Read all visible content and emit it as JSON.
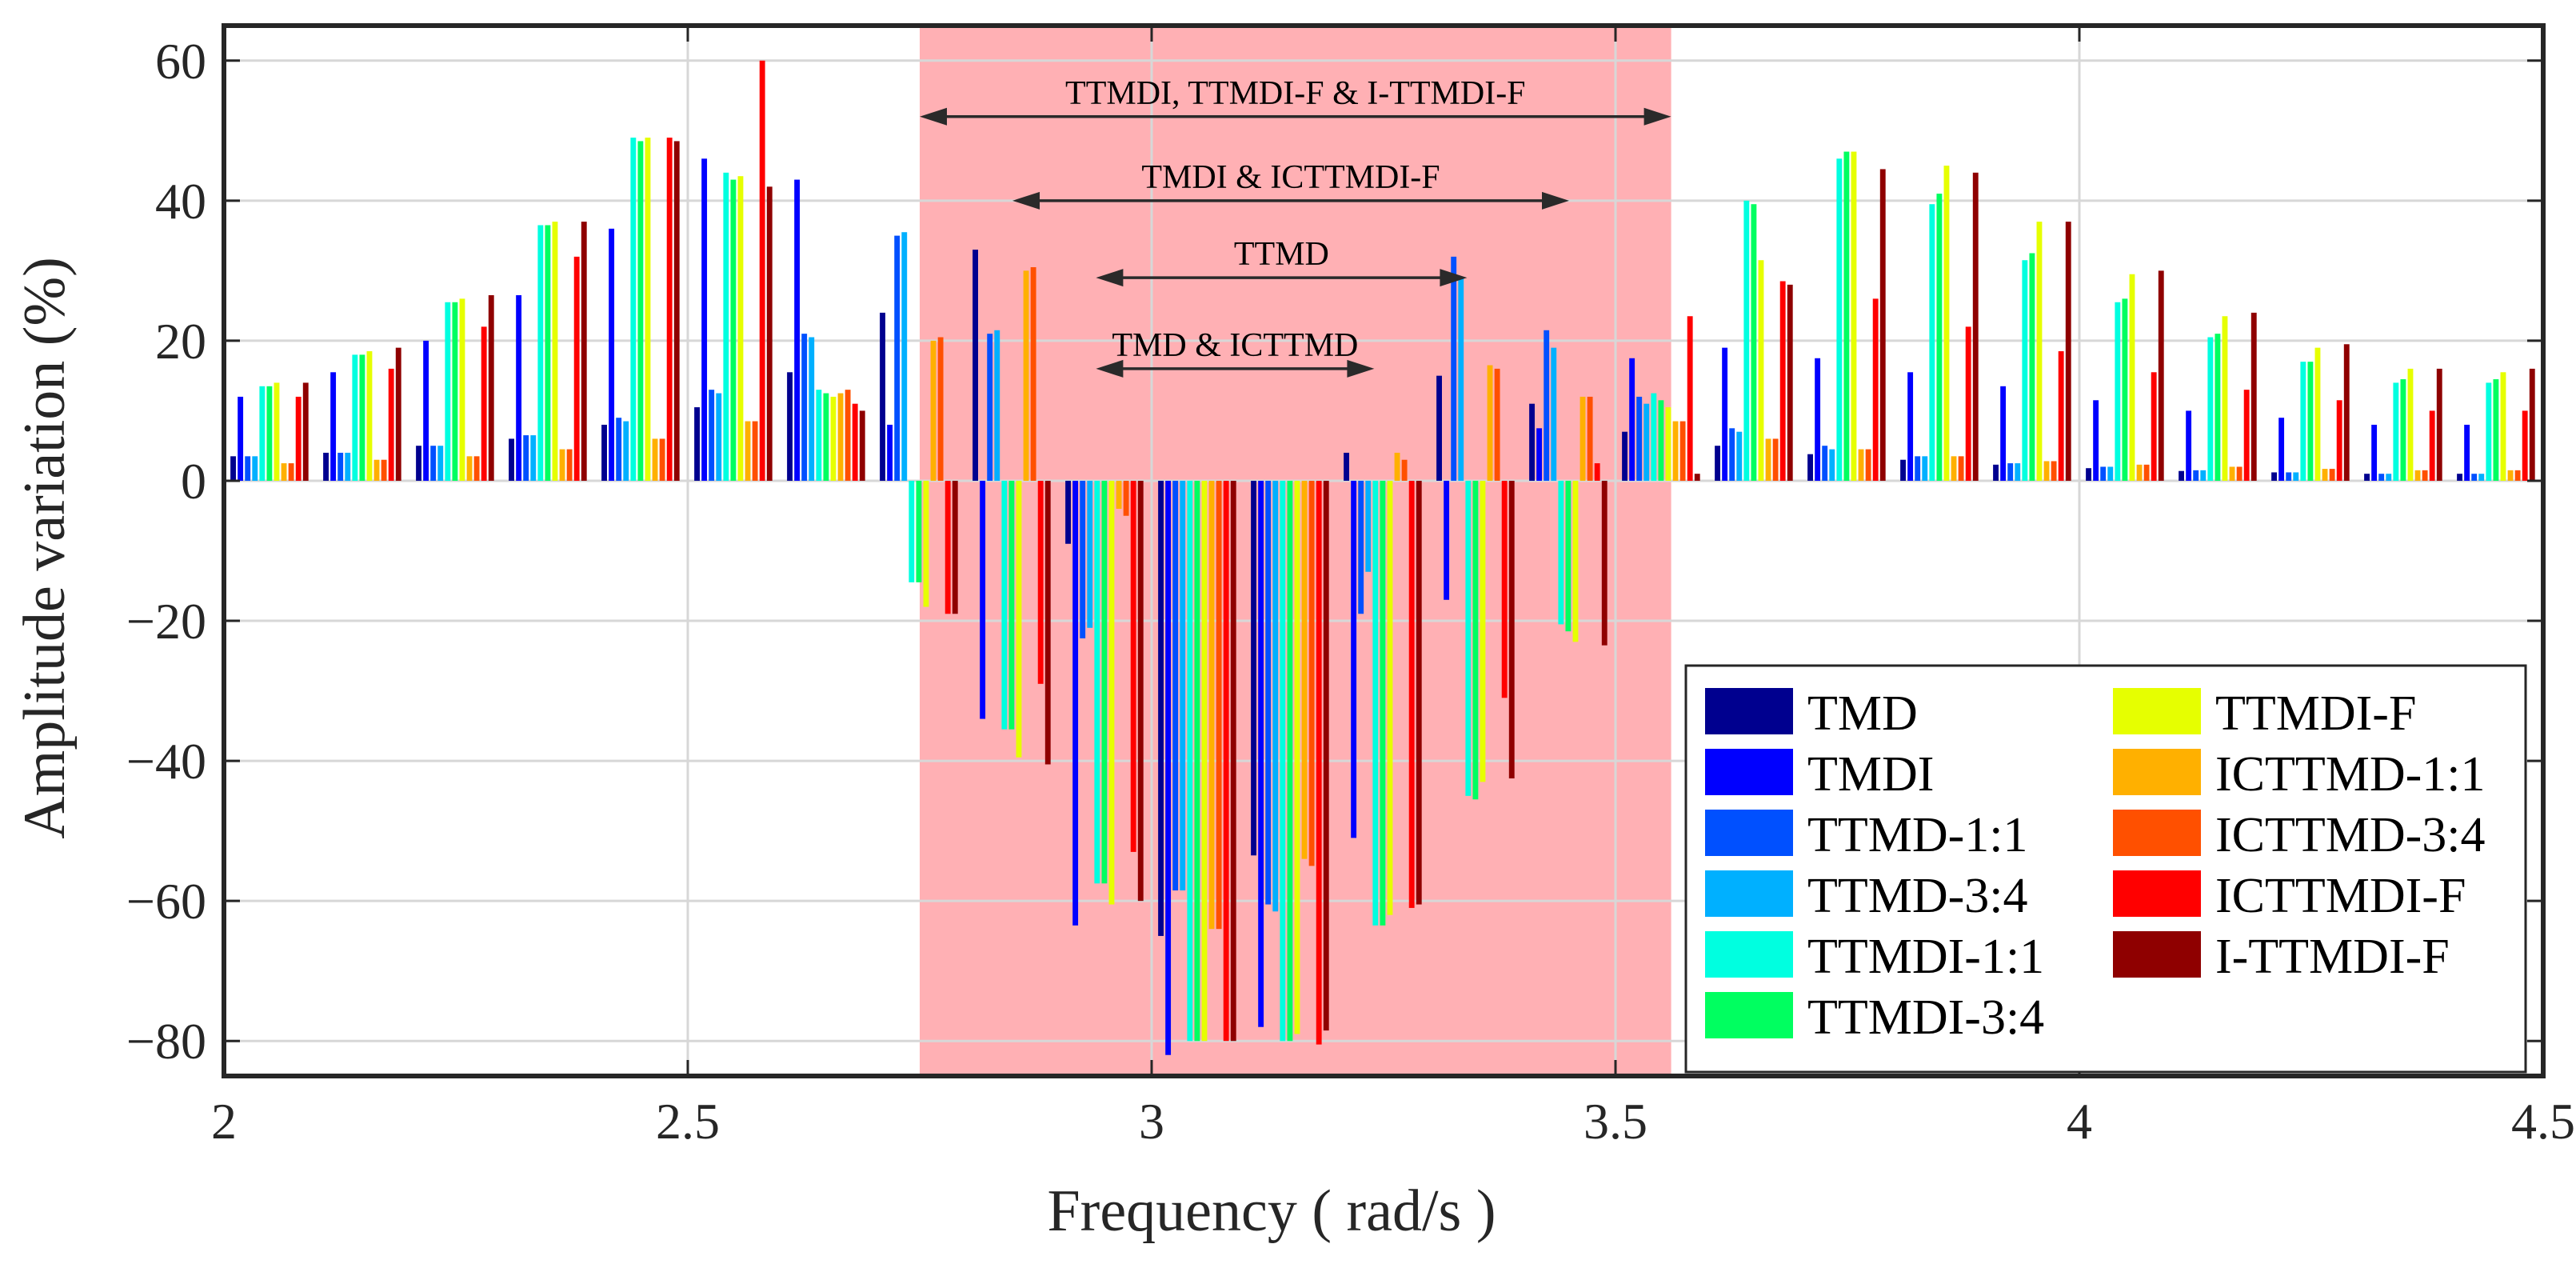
{
  "chart_data": {
    "type": "bar",
    "title": "",
    "xlabel": "Frequency ( rad/s )",
    "ylabel": "Amplitude variation (%)",
    "xlim": [
      2,
      4.5
    ],
    "ylim": [
      -85,
      65
    ],
    "xticks": [
      2,
      2.5,
      3,
      3.5,
      4,
      4.5
    ],
    "xtick_labels": [
      "2",
      "2.5",
      "3",
      "3.5",
      "4",
      "4.5"
    ],
    "yticks": [
      60,
      40,
      20,
      0,
      -20,
      -40,
      -60,
      -80
    ],
    "ytick_labels": [
      "60",
      "40",
      "20",
      "0",
      "−20",
      "−40",
      "−60",
      "−80"
    ],
    "grid": true,
    "legend_position": "lower-right",
    "shaded_region": {
      "x": [
        2.75,
        3.56
      ],
      "color": "#ffb0b4"
    },
    "annotations": [
      {
        "text": "TTMDI, TTMDI-F & I-TTMDI-F",
        "x_start": 2.75,
        "x_end": 3.56,
        "y": 52
      },
      {
        "text": "TMDI & ICTTMDI-F",
        "x_start": 2.85,
        "x_end": 3.45,
        "y": 40
      },
      {
        "text": "TTMD",
        "x_start": 2.94,
        "x_end": 3.34,
        "y": 29
      },
      {
        "text": "TMD & ICTTMD",
        "x_start": 2.94,
        "x_end": 3.24,
        "y": 16
      }
    ],
    "categories": [
      2.05,
      2.15,
      2.25,
      2.35,
      2.45,
      2.55,
      2.65,
      2.75,
      2.85,
      2.95,
      3.05,
      3.15,
      3.25,
      3.35,
      3.45,
      3.55,
      3.65,
      3.75,
      3.85,
      3.95,
      4.05,
      4.15,
      4.25,
      4.35,
      4.45
    ],
    "series": [
      {
        "name": "TMD",
        "color": "#00008f",
        "values": [
          3.5,
          4,
          5,
          6,
          8,
          10.5,
          15.5,
          24,
          33,
          -9,
          -65,
          -53.5,
          4,
          15,
          11,
          7,
          5,
          3.8,
          3,
          2.3,
          1.8,
          1.4,
          1.2,
          1,
          1
        ]
      },
      {
        "name": "TMDI",
        "color": "#0000ff",
        "values": [
          12,
          15.5,
          20,
          26.5,
          36,
          46,
          43,
          8,
          -34,
          -63.5,
          -82,
          -78,
          -51,
          -17,
          7.5,
          17.5,
          19,
          17.5,
          15.5,
          13.5,
          11.5,
          10,
          9,
          8,
          8
        ]
      },
      {
        "name": "TTMD-1:1",
        "color": "#0050ff",
        "values": [
          3.5,
          4,
          5,
          6.5,
          9,
          13,
          21,
          35,
          21,
          -22.5,
          -58.5,
          -60.5,
          -19,
          32,
          21.5,
          12,
          7.5,
          5,
          3.5,
          2.5,
          2,
          1.5,
          1.2,
          1,
          1
        ]
      },
      {
        "name": "TTMD-3:4",
        "color": "#00b0ff",
        "values": [
          3.5,
          4,
          5,
          6.5,
          8.5,
          12.5,
          20.5,
          35.5,
          21.5,
          -21,
          -58.5,
          -61.5,
          -13,
          29,
          19,
          11,
          7,
          4.5,
          3.5,
          2.5,
          2,
          1.5,
          1.2,
          1,
          1
        ]
      },
      {
        "name": "TTMDI-1:1",
        "color": "#00ffe0",
        "values": [
          13.5,
          18,
          25.5,
          36.5,
          49,
          44,
          13,
          -14.5,
          -35.5,
          -57.5,
          -80,
          -80,
          -63.5,
          -45,
          -20.5,
          12.5,
          40,
          46,
          39.5,
          31.5,
          25.5,
          20.5,
          17,
          14,
          14
        ]
      },
      {
        "name": "TTMDI-3:4",
        "color": "#00ff60",
        "values": [
          13.5,
          18,
          25.5,
          36.5,
          48.5,
          43,
          12.5,
          -14.5,
          -35.5,
          -57.5,
          -80,
          -80,
          -63.5,
          -45.5,
          -21.5,
          11.5,
          39.5,
          47,
          41,
          32.5,
          26,
          21,
          17,
          14.5,
          14.5
        ]
      },
      {
        "name": "TTMDI-F",
        "color": "#e6ff00",
        "values": [
          14,
          18.5,
          26,
          37,
          49,
          43.5,
          12,
          -18,
          -39.5,
          -60.5,
          -80,
          -79,
          -62,
          -43,
          -23,
          10.5,
          31.5,
          47,
          45,
          37,
          29.5,
          23.5,
          19,
          16,
          15.5
        ]
      },
      {
        "name": "ICTTMD-1:1",
        "color": "#ffb000",
        "values": [
          2.5,
          3,
          3.5,
          4.5,
          6,
          8.5,
          12.5,
          20,
          30,
          -4,
          -64,
          -54,
          4,
          16.5,
          12,
          8.5,
          6,
          4.5,
          3.5,
          2.8,
          2.3,
          2,
          1.7,
          1.5,
          1.5
        ]
      },
      {
        "name": "ICTTMD-3:4",
        "color": "#ff5000",
        "values": [
          2.5,
          3,
          3.5,
          4.5,
          6,
          8.5,
          13,
          20.5,
          30.5,
          -5,
          -64,
          -55,
          3,
          16,
          12,
          8.5,
          6,
          4.5,
          3.5,
          2.8,
          2.3,
          2,
          1.7,
          1.5,
          1.5
        ]
      },
      {
        "name": "ICTTMDI-F",
        "color": "#ff0000",
        "values": [
          12,
          16,
          22,
          32,
          49,
          60,
          11,
          -19,
          -29,
          -53,
          -80,
          -80.5,
          -61,
          -31,
          2.5,
          23.5,
          28.5,
          26,
          22,
          18.5,
          15.5,
          13,
          11.5,
          10,
          10
        ]
      },
      {
        "name": "I-TTMDI-F",
        "color": "#8f0000",
        "values": [
          14,
          19,
          26.5,
          37,
          48.5,
          42,
          10,
          -19,
          -40.5,
          -60,
          -80,
          -78.5,
          -60.5,
          -42.5,
          -23.5,
          1,
          28,
          44.5,
          44,
          37,
          30,
          24,
          19.5,
          16,
          16
        ]
      }
    ]
  }
}
